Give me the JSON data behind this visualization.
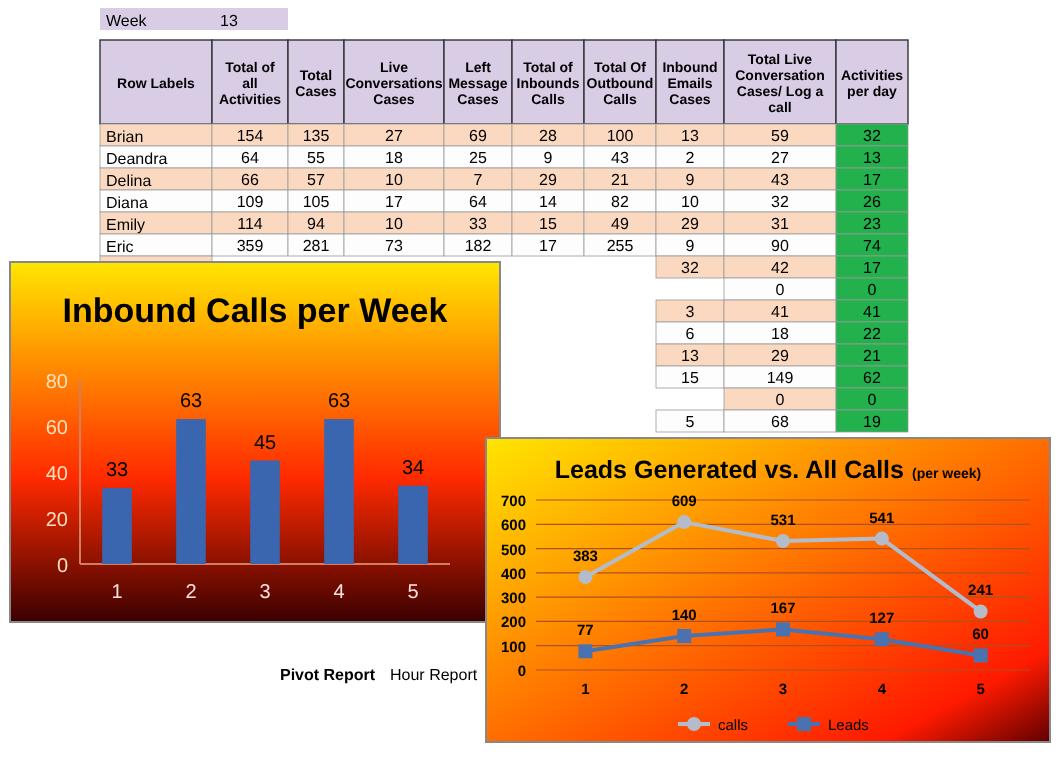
{
  "chart_data": [
    {
      "type": "heatmap",
      "data_labels": true,
      "ylabel": "Row Labels",
      "annotations": [
        "Week",
        "13",
        "Pivot Report",
        "Hour Report"
      ],
      "categories": [
        "Total of all Activities",
        "Total Cases",
        "Live Conversations Cases",
        "Left Message Cases",
        "Total of Inbounds Calls",
        "Total Of Outbound Calls",
        "Inbound Emails Cases",
        "Total Live Conversation Cases/ Log a call",
        "Activities per day"
      ],
      "y_categories": [
        "Brian",
        "Deandra",
        "Delina",
        "Diana",
        "Emily",
        "Eric",
        null,
        null,
        null,
        null,
        null,
        null,
        null,
        null
      ],
      "cells": [
        [
          154,
          135,
          27,
          69,
          28,
          100,
          13,
          59,
          32
        ],
        [
          64,
          55,
          18,
          25,
          9,
          43,
          2,
          27,
          13
        ],
        [
          66,
          57,
          10,
          7,
          29,
          21,
          9,
          43,
          17
        ],
        [
          109,
          105,
          17,
          64,
          14,
          82,
          10,
          32,
          26
        ],
        [
          114,
          94,
          10,
          33,
          15,
          49,
          29,
          31,
          23
        ],
        [
          359,
          281,
          73,
          182,
          17,
          255,
          9,
          90,
          74
        ],
        [
          null,
          null,
          null,
          null,
          null,
          null,
          32,
          42,
          17
        ],
        [
          null,
          null,
          null,
          null,
          null,
          null,
          null,
          0,
          0
        ],
        [
          null,
          null,
          null,
          null,
          null,
          null,
          3,
          41,
          41
        ],
        [
          null,
          null,
          null,
          null,
          null,
          null,
          6,
          18,
          22
        ],
        [
          null,
          null,
          null,
          null,
          null,
          null,
          13,
          29,
          21
        ],
        [
          null,
          null,
          null,
          null,
          null,
          null,
          15,
          149,
          62
        ],
        [
          null,
          null,
          null,
          null,
          null,
          null,
          null,
          0,
          0
        ],
        [
          null,
          null,
          null,
          null,
          null,
          null,
          5,
          68,
          19
        ]
      ]
    },
    {
      "type": "bar",
      "title": "Inbound Calls per Week",
      "categories": [
        "1",
        "2",
        "3",
        "4",
        "5"
      ],
      "values": [
        33,
        63,
        45,
        63,
        34
      ],
      "color": "#3a66b0",
      "ylim": [
        0,
        80
      ],
      "yticks": [
        0,
        20,
        40,
        60,
        80
      ],
      "data_labels": true
    },
    {
      "type": "line",
      "title": "Leads Generated vs. All Calls",
      "subtitle": "(per week)",
      "categories": [
        "1",
        "2",
        "3",
        "4",
        "5"
      ],
      "series": [
        {
          "name": "calls",
          "color": "#b4bccc",
          "marker": "circle",
          "values": [
            383,
            609,
            531,
            541,
            241
          ]
        },
        {
          "name": "Leads",
          "color": "#4a72b0",
          "marker": "square",
          "values": [
            77,
            140,
            167,
            127,
            60
          ]
        }
      ],
      "ylim": [
        0,
        700
      ],
      "yticks": [
        0,
        100,
        200,
        300,
        400,
        500,
        600,
        700
      ],
      "grid": "y",
      "legend": "bottom",
      "data_labels": true
    }
  ]
}
